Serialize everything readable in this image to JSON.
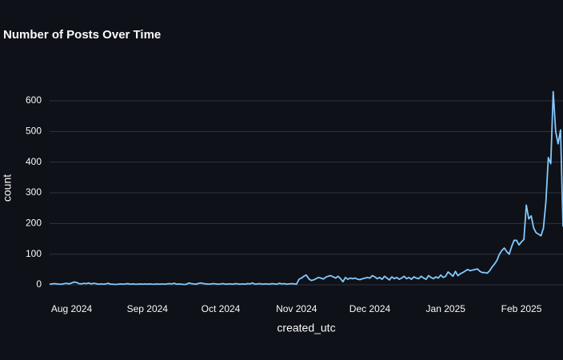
{
  "chart_data": {
    "type": "line",
    "title": "Number of Posts Over Time",
    "xlabel": "created_utc",
    "ylabel": "count",
    "color": "#83c9ff",
    "grid": true,
    "xlim": [
      0,
      210
    ],
    "xticks": [
      {
        "value": 9,
        "label": "Aug 2024"
      },
      {
        "value": 40,
        "label": "Sep 2024"
      },
      {
        "value": 70,
        "label": "Oct 2024"
      },
      {
        "value": 101,
        "label": "Nov 2024"
      },
      {
        "value": 131,
        "label": "Dec 2024"
      },
      {
        "value": 162,
        "label": "Jan 2025"
      },
      {
        "value": 193,
        "label": "Feb 2025"
      }
    ],
    "ylim": [
      -20,
      660
    ],
    "yticks": [
      0,
      100,
      200,
      300,
      400,
      500,
      600
    ],
    "values": [
      2,
      3,
      4,
      3,
      2,
      2,
      4,
      5,
      3,
      6,
      9,
      8,
      4,
      3,
      5,
      4,
      6,
      3,
      5,
      4,
      2,
      3,
      2,
      3,
      5,
      2,
      2,
      1,
      2,
      3,
      2,
      3,
      4,
      2,
      3,
      2,
      2,
      3,
      2,
      3,
      2,
      3,
      2,
      2,
      3,
      2,
      3,
      2,
      3,
      4,
      3,
      5,
      2,
      3,
      2,
      1,
      2,
      6,
      4,
      3,
      2,
      5,
      6,
      4,
      3,
      2,
      3,
      4,
      3,
      2,
      3,
      4,
      2,
      3,
      3,
      2,
      4,
      3,
      2,
      3,
      2,
      4,
      3,
      6,
      2,
      3,
      4,
      2,
      3,
      3,
      2,
      4,
      3,
      2,
      5,
      3,
      4,
      2,
      3,
      4,
      3,
      2,
      18,
      22,
      28,
      32,
      20,
      14,
      16,
      20,
      24,
      22,
      19,
      25,
      28,
      30,
      26,
      22,
      28,
      20,
      10,
      24,
      18,
      22,
      20,
      22,
      18,
      17,
      20,
      22,
      24,
      22,
      30,
      26,
      20,
      24,
      18,
      28,
      22,
      16,
      26,
      20,
      24,
      18,
      22,
      28,
      20,
      24,
      18,
      26,
      22,
      20,
      28,
      22,
      18,
      30,
      24,
      20,
      26,
      22,
      32,
      24,
      28,
      42,
      35,
      28,
      44,
      30,
      36,
      40,
      45,
      50,
      46,
      48,
      50,
      52,
      44,
      40,
      40,
      38,
      46,
      58,
      68,
      80,
      100,
      112,
      120,
      108,
      100,
      125,
      145,
      145,
      130,
      140,
      148,
      260,
      215,
      225,
      185,
      170,
      165,
      160,
      185,
      270,
      415,
      395,
      630,
      500,
      460,
      505,
      190
    ]
  }
}
